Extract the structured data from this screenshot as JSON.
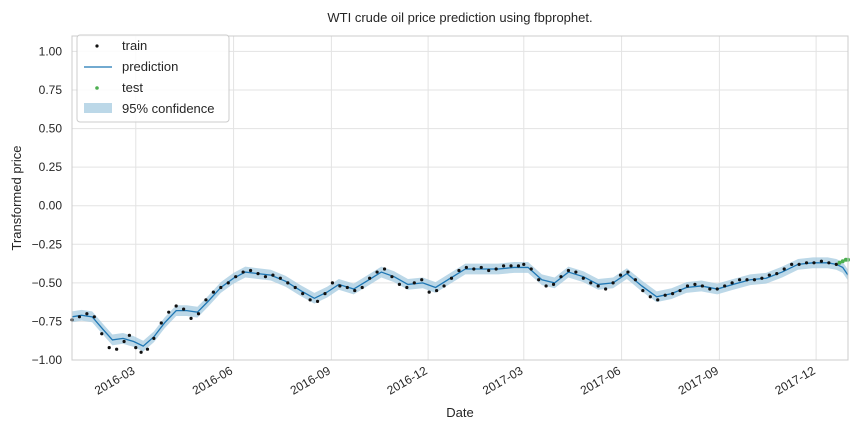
{
  "chart_data": {
    "type": "line",
    "title": "WTI crude oil price prediction using fbprophet.",
    "xlabel": "Date",
    "ylabel": "Transformed price",
    "xlim": [
      "2016-01-01",
      "2017-12-31"
    ],
    "ylim": [
      -1.0,
      1.1
    ],
    "yticks": [
      -1.0,
      -0.75,
      -0.5,
      -0.25,
      0.0,
      0.25,
      0.5,
      0.75,
      1.0
    ],
    "ytick_labels": [
      "−1.00",
      "−0.75",
      "−0.50",
      "−0.25",
      "0.00",
      "0.25",
      "0.50",
      "0.75",
      "1.00"
    ],
    "xticks": [
      "2016-03-01",
      "2016-06-01",
      "2016-09-01",
      "2016-12-01",
      "2017-03-01",
      "2017-06-01",
      "2017-09-01",
      "2017-12-01"
    ],
    "xtick_labels": [
      "2016-03",
      "2016-06",
      "2016-09",
      "2016-12",
      "2017-03",
      "2017-06",
      "2017-09",
      "2017-12"
    ],
    "grid": true,
    "legend_position": "top-left",
    "legend": [
      "train",
      "prediction",
      "test",
      "95% confidence"
    ],
    "colors": {
      "train": "#111111",
      "prediction": "#1f77b4",
      "test": "#4caf50",
      "confidence": "#a6cbe0"
    },
    "series": [
      {
        "name": "train",
        "kind": "scatter",
        "points": [
          [
            "2016-01-01",
            -0.74
          ],
          [
            "2016-01-08",
            -0.72
          ],
          [
            "2016-01-15",
            -0.7
          ],
          [
            "2016-01-22",
            -0.72
          ],
          [
            "2016-01-29",
            -0.83
          ],
          [
            "2016-02-05",
            -0.92
          ],
          [
            "2016-02-12",
            -0.93
          ],
          [
            "2016-02-19",
            -0.88
          ],
          [
            "2016-02-24",
            -0.84
          ],
          [
            "2016-03-01",
            -0.92
          ],
          [
            "2016-03-06",
            -0.95
          ],
          [
            "2016-03-12",
            -0.93
          ],
          [
            "2016-03-18",
            -0.86
          ],
          [
            "2016-03-25",
            -0.76
          ],
          [
            "2016-04-01",
            -0.69
          ],
          [
            "2016-04-08",
            -0.65
          ],
          [
            "2016-04-15",
            -0.67
          ],
          [
            "2016-04-22",
            -0.73
          ],
          [
            "2016-04-29",
            -0.7
          ],
          [
            "2016-05-06",
            -0.61
          ],
          [
            "2016-05-13",
            -0.56
          ],
          [
            "2016-05-20",
            -0.53
          ],
          [
            "2016-05-27",
            -0.5
          ],
          [
            "2016-06-03",
            -0.46
          ],
          [
            "2016-06-10",
            -0.43
          ],
          [
            "2016-06-17",
            -0.42
          ],
          [
            "2016-06-24",
            -0.44
          ],
          [
            "2016-07-01",
            -0.46
          ],
          [
            "2016-07-08",
            -0.45
          ],
          [
            "2016-07-15",
            -0.47
          ],
          [
            "2016-07-22",
            -0.5
          ],
          [
            "2016-07-29",
            -0.53
          ],
          [
            "2016-08-05",
            -0.57
          ],
          [
            "2016-08-12",
            -0.61
          ],
          [
            "2016-08-19",
            -0.62
          ],
          [
            "2016-08-26",
            -0.57
          ],
          [
            "2016-09-02",
            -0.5
          ],
          [
            "2016-09-09",
            -0.52
          ],
          [
            "2016-09-16",
            -0.53
          ],
          [
            "2016-09-23",
            -0.55
          ],
          [
            "2016-09-30",
            -0.53
          ],
          [
            "2016-10-07",
            -0.47
          ],
          [
            "2016-10-14",
            -0.43
          ],
          [
            "2016-10-21",
            -0.41
          ],
          [
            "2016-10-28",
            -0.46
          ],
          [
            "2016-11-04",
            -0.51
          ],
          [
            "2016-11-11",
            -0.53
          ],
          [
            "2016-11-18",
            -0.5
          ],
          [
            "2016-11-25",
            -0.48
          ],
          [
            "2016-12-02",
            -0.56
          ],
          [
            "2016-12-09",
            -0.55
          ],
          [
            "2016-12-16",
            -0.52
          ],
          [
            "2016-12-23",
            -0.47
          ],
          [
            "2016-12-30",
            -0.42
          ],
          [
            "2017-01-06",
            -0.4
          ],
          [
            "2017-01-13",
            -0.41
          ],
          [
            "2017-01-20",
            -0.4
          ],
          [
            "2017-01-27",
            -0.42
          ],
          [
            "2017-02-03",
            -0.41
          ],
          [
            "2017-02-10",
            -0.39
          ],
          [
            "2017-02-17",
            -0.39
          ],
          [
            "2017-02-24",
            -0.39
          ],
          [
            "2017-03-01",
            -0.38
          ],
          [
            "2017-03-08",
            -0.41
          ],
          [
            "2017-03-15",
            -0.48
          ],
          [
            "2017-03-22",
            -0.52
          ],
          [
            "2017-03-29",
            -0.51
          ],
          [
            "2017-04-05",
            -0.46
          ],
          [
            "2017-04-12",
            -0.42
          ],
          [
            "2017-04-19",
            -0.43
          ],
          [
            "2017-04-26",
            -0.47
          ],
          [
            "2017-05-03",
            -0.5
          ],
          [
            "2017-05-10",
            -0.52
          ],
          [
            "2017-05-17",
            -0.54
          ],
          [
            "2017-05-24",
            -0.5
          ],
          [
            "2017-05-31",
            -0.45
          ],
          [
            "2017-06-07",
            -0.43
          ],
          [
            "2017-06-14",
            -0.48
          ],
          [
            "2017-06-21",
            -0.55
          ],
          [
            "2017-06-28",
            -0.59
          ],
          [
            "2017-07-05",
            -0.61
          ],
          [
            "2017-07-12",
            -0.58
          ],
          [
            "2017-07-19",
            -0.57
          ],
          [
            "2017-07-26",
            -0.55
          ],
          [
            "2017-08-02",
            -0.52
          ],
          [
            "2017-08-09",
            -0.51
          ],
          [
            "2017-08-16",
            -0.52
          ],
          [
            "2017-08-23",
            -0.54
          ],
          [
            "2017-08-30",
            -0.54
          ],
          [
            "2017-09-06",
            -0.52
          ],
          [
            "2017-09-13",
            -0.5
          ],
          [
            "2017-09-20",
            -0.48
          ],
          [
            "2017-09-27",
            -0.48
          ],
          [
            "2017-10-04",
            -0.48
          ],
          [
            "2017-10-11",
            -0.47
          ],
          [
            "2017-10-18",
            -0.45
          ],
          [
            "2017-10-25",
            -0.44
          ],
          [
            "2017-11-01",
            -0.41
          ],
          [
            "2017-11-08",
            -0.38
          ],
          [
            "2017-11-15",
            -0.38
          ],
          [
            "2017-11-22",
            -0.37
          ],
          [
            "2017-11-29",
            -0.37
          ],
          [
            "2017-12-06",
            -0.36
          ],
          [
            "2017-12-13",
            -0.37
          ],
          [
            "2017-12-20",
            -0.38
          ]
        ]
      },
      {
        "name": "prediction",
        "kind": "line",
        "points": [
          [
            "2016-01-01",
            -0.72
          ],
          [
            "2016-01-10",
            -0.71
          ],
          [
            "2016-01-20",
            -0.72
          ],
          [
            "2016-01-30",
            -0.8
          ],
          [
            "2016-02-08",
            -0.87
          ],
          [
            "2016-02-18",
            -0.86
          ],
          [
            "2016-02-28",
            -0.88
          ],
          [
            "2016-03-08",
            -0.91
          ],
          [
            "2016-03-18",
            -0.85
          ],
          [
            "2016-03-28",
            -0.76
          ],
          [
            "2016-04-08",
            -0.68
          ],
          [
            "2016-04-18",
            -0.68
          ],
          [
            "2016-04-28",
            -0.69
          ],
          [
            "2016-05-08",
            -0.62
          ],
          [
            "2016-05-20",
            -0.53
          ],
          [
            "2016-06-01",
            -0.47
          ],
          [
            "2016-06-12",
            -0.43
          ],
          [
            "2016-06-24",
            -0.44
          ],
          [
            "2016-07-06",
            -0.45
          ],
          [
            "2016-07-20",
            -0.49
          ],
          [
            "2016-08-03",
            -0.55
          ],
          [
            "2016-08-16",
            -0.6
          ],
          [
            "2016-08-28",
            -0.56
          ],
          [
            "2016-09-08",
            -0.51
          ],
          [
            "2016-09-22",
            -0.54
          ],
          [
            "2016-10-04",
            -0.49
          ],
          [
            "2016-10-18",
            -0.43
          ],
          [
            "2016-10-30",
            -0.46
          ],
          [
            "2016-11-12",
            -0.51
          ],
          [
            "2016-11-26",
            -0.5
          ],
          [
            "2016-12-08",
            -0.53
          ],
          [
            "2016-12-22",
            -0.47
          ],
          [
            "2017-01-05",
            -0.41
          ],
          [
            "2017-01-20",
            -0.41
          ],
          [
            "2017-02-05",
            -0.41
          ],
          [
            "2017-02-20",
            -0.4
          ],
          [
            "2017-03-05",
            -0.4
          ],
          [
            "2017-03-18",
            -0.48
          ],
          [
            "2017-03-30",
            -0.5
          ],
          [
            "2017-04-12",
            -0.43
          ],
          [
            "2017-04-26",
            -0.46
          ],
          [
            "2017-05-10",
            -0.51
          ],
          [
            "2017-05-24",
            -0.5
          ],
          [
            "2017-06-06",
            -0.44
          ],
          [
            "2017-06-20",
            -0.52
          ],
          [
            "2017-07-04",
            -0.59
          ],
          [
            "2017-07-18",
            -0.57
          ],
          [
            "2017-08-01",
            -0.53
          ],
          [
            "2017-08-15",
            -0.52
          ],
          [
            "2017-08-30",
            -0.54
          ],
          [
            "2017-09-14",
            -0.51
          ],
          [
            "2017-09-30",
            -0.48
          ],
          [
            "2017-10-15",
            -0.47
          ],
          [
            "2017-10-30",
            -0.43
          ],
          [
            "2017-11-14",
            -0.38
          ],
          [
            "2017-11-28",
            -0.37
          ],
          [
            "2017-12-12",
            -0.37
          ],
          [
            "2017-12-20",
            -0.38
          ],
          [
            "2017-12-26",
            -0.4
          ],
          [
            "2017-12-31",
            -0.45
          ]
        ]
      },
      {
        "name": "test",
        "kind": "scatter",
        "points": [
          [
            "2017-12-23",
            -0.37
          ],
          [
            "2017-12-26",
            -0.36
          ],
          [
            "2017-12-29",
            -0.35
          ],
          [
            "2017-12-31",
            -0.35
          ]
        ]
      },
      {
        "name": "95% confidence",
        "kind": "band",
        "half_width": 0.035
      }
    ]
  }
}
